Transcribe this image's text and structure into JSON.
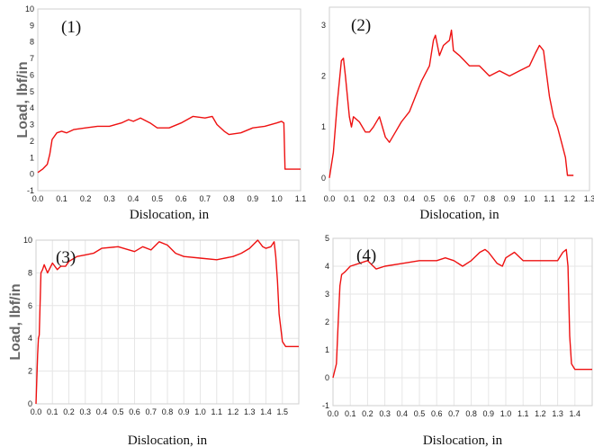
{
  "colors": {
    "series": "#ee1111"
  },
  "chart_data": [
    {
      "type": "line",
      "tag": "(1)",
      "xlabel": "Dislocation, in",
      "ylabel": "Load, lbf/in",
      "xlim": [
        0.0,
        1.1
      ],
      "ylim": [
        -1,
        10
      ],
      "grid": false,
      "xticks": [
        "0.0",
        "0.1",
        "0.2",
        "0.3",
        "0.4",
        "0.5",
        "0.6",
        "0.7",
        "0.8",
        "0.9",
        "1.0",
        "1.1"
      ],
      "yticks": [
        "-1",
        "0",
        "1",
        "2",
        "3",
        "4",
        "5",
        "6",
        "7",
        "8",
        "9",
        "10"
      ],
      "series": [
        {
          "x": [
            0.0,
            0.02,
            0.04,
            0.05,
            0.06,
            0.08,
            0.1,
            0.12,
            0.15,
            0.2,
            0.25,
            0.3,
            0.35,
            0.38,
            0.4,
            0.43,
            0.47,
            0.5,
            0.55,
            0.6,
            0.65,
            0.7,
            0.73,
            0.75,
            0.78,
            0.8,
            0.85,
            0.9,
            0.95,
            1.0,
            1.02,
            1.03,
            1.035,
            1.04,
            1.1
          ],
          "y": [
            0.1,
            0.3,
            0.6,
            1.2,
            2.1,
            2.5,
            2.6,
            2.5,
            2.7,
            2.8,
            2.9,
            2.9,
            3.1,
            3.3,
            3.2,
            3.4,
            3.1,
            2.8,
            2.8,
            3.1,
            3.5,
            3.4,
            3.5,
            3.0,
            2.6,
            2.4,
            2.5,
            2.8,
            2.9,
            3.1,
            3.2,
            3.1,
            0.3,
            0.3,
            0.3
          ]
        }
      ]
    },
    {
      "type": "line",
      "tag": "(2)",
      "xlabel": "Dislocation, in",
      "ylabel": "",
      "xlim": [
        0.0,
        1.3
      ],
      "ylim": [
        -0.25,
        3.35
      ],
      "grid": false,
      "xticks": [
        "0.0",
        "0.1",
        "0.2",
        "0.3",
        "0.4",
        "0.5",
        "0.6",
        "0.7",
        "0.8",
        "0.9",
        "1.0",
        "1.1",
        "1.2",
        "1.3"
      ],
      "yticks": [
        "0",
        "1",
        "2",
        "3"
      ],
      "series": [
        {
          "x": [
            0.0,
            0.02,
            0.04,
            0.06,
            0.07,
            0.08,
            0.1,
            0.11,
            0.12,
            0.15,
            0.18,
            0.2,
            0.22,
            0.25,
            0.28,
            0.3,
            0.33,
            0.36,
            0.4,
            0.43,
            0.46,
            0.5,
            0.52,
            0.53,
            0.55,
            0.57,
            0.6,
            0.61,
            0.62,
            0.65,
            0.7,
            0.75,
            0.8,
            0.85,
            0.9,
            0.95,
            1.0,
            1.03,
            1.05,
            1.07,
            1.1,
            1.12,
            1.14,
            1.16,
            1.18,
            1.19,
            1.22
          ],
          "y": [
            0.0,
            0.5,
            1.5,
            2.3,
            2.35,
            2.0,
            1.2,
            1.0,
            1.2,
            1.1,
            0.9,
            0.9,
            1.0,
            1.2,
            0.8,
            0.7,
            0.9,
            1.1,
            1.3,
            1.6,
            1.9,
            2.2,
            2.7,
            2.8,
            2.4,
            2.6,
            2.7,
            2.9,
            2.5,
            2.4,
            2.2,
            2.2,
            2.0,
            2.1,
            2.0,
            2.1,
            2.2,
            2.45,
            2.6,
            2.5,
            1.6,
            1.2,
            1.0,
            0.7,
            0.4,
            0.05,
            0.05
          ]
        }
      ]
    },
    {
      "type": "line",
      "tag": "(3)",
      "xlabel": "Dislocation, in",
      "ylabel": "Load, lbf/in",
      "xlim": [
        0.0,
        1.6
      ],
      "ylim": [
        0,
        10
      ],
      "grid": true,
      "xticks": [
        "0.0",
        "0.1",
        "0.2",
        "0.3",
        "0.4",
        "0.5",
        "0.6",
        "0.7",
        "0.8",
        "0.9",
        "1.0",
        "1.1",
        "1.2",
        "1.3",
        "1.4",
        "1.5"
      ],
      "yticks": [
        "0",
        "2",
        "4",
        "6",
        "8",
        "10"
      ],
      "series": [
        {
          "x": [
            0.0,
            0.01,
            0.015,
            0.02,
            0.03,
            0.04,
            0.05,
            0.07,
            0.1,
            0.13,
            0.15,
            0.18,
            0.2,
            0.25,
            0.3,
            0.35,
            0.4,
            0.5,
            0.6,
            0.65,
            0.7,
            0.75,
            0.8,
            0.85,
            0.9,
            1.0,
            1.1,
            1.2,
            1.25,
            1.3,
            1.35,
            1.38,
            1.4,
            1.43,
            1.45,
            1.46,
            1.47,
            1.48,
            1.5,
            1.52,
            1.6
          ],
          "y": [
            0.0,
            3.0,
            4.0,
            4.2,
            8.0,
            8.2,
            8.5,
            8.0,
            8.6,
            8.2,
            8.4,
            8.4,
            8.7,
            9.0,
            9.1,
            9.2,
            9.5,
            9.6,
            9.3,
            9.6,
            9.4,
            9.9,
            9.7,
            9.2,
            9.0,
            8.9,
            8.8,
            9.0,
            9.2,
            9.5,
            10.0,
            9.6,
            9.5,
            9.6,
            9.9,
            9.0,
            7.5,
            5.5,
            3.8,
            3.5,
            3.5
          ]
        }
      ]
    },
    {
      "type": "line",
      "tag": "(4)",
      "xlabel": "Dislocation, in",
      "ylabel": "",
      "xlim": [
        0.0,
        1.5
      ],
      "ylim": [
        -1,
        5
      ],
      "grid": true,
      "xticks": [
        "0.0",
        "0.1",
        "0.2",
        "0.3",
        "0.4",
        "0.5",
        "0.6",
        "0.7",
        "0.8",
        "0.9",
        "1.0",
        "1.1",
        "1.2",
        "1.3",
        "1.4"
      ],
      "yticks": [
        "-1",
        "0",
        "1",
        "2",
        "3",
        "4",
        "5"
      ],
      "series": [
        {
          "x": [
            0.0,
            0.02,
            0.03,
            0.04,
            0.05,
            0.07,
            0.1,
            0.15,
            0.2,
            0.25,
            0.3,
            0.4,
            0.5,
            0.6,
            0.65,
            0.7,
            0.75,
            0.8,
            0.85,
            0.88,
            0.9,
            0.95,
            0.98,
            1.0,
            1.05,
            1.1,
            1.15,
            1.2,
            1.25,
            1.3,
            1.33,
            1.35,
            1.36,
            1.37,
            1.38,
            1.4,
            1.5
          ],
          "y": [
            0.0,
            0.5,
            2.0,
            3.3,
            3.7,
            3.8,
            4.0,
            4.1,
            4.2,
            3.9,
            4.0,
            4.1,
            4.2,
            4.2,
            4.3,
            4.2,
            4.0,
            4.2,
            4.5,
            4.6,
            4.5,
            4.1,
            4.0,
            4.3,
            4.5,
            4.2,
            4.2,
            4.2,
            4.2,
            4.2,
            4.5,
            4.6,
            4.0,
            1.5,
            0.5,
            0.3,
            0.3
          ]
        }
      ]
    }
  ]
}
